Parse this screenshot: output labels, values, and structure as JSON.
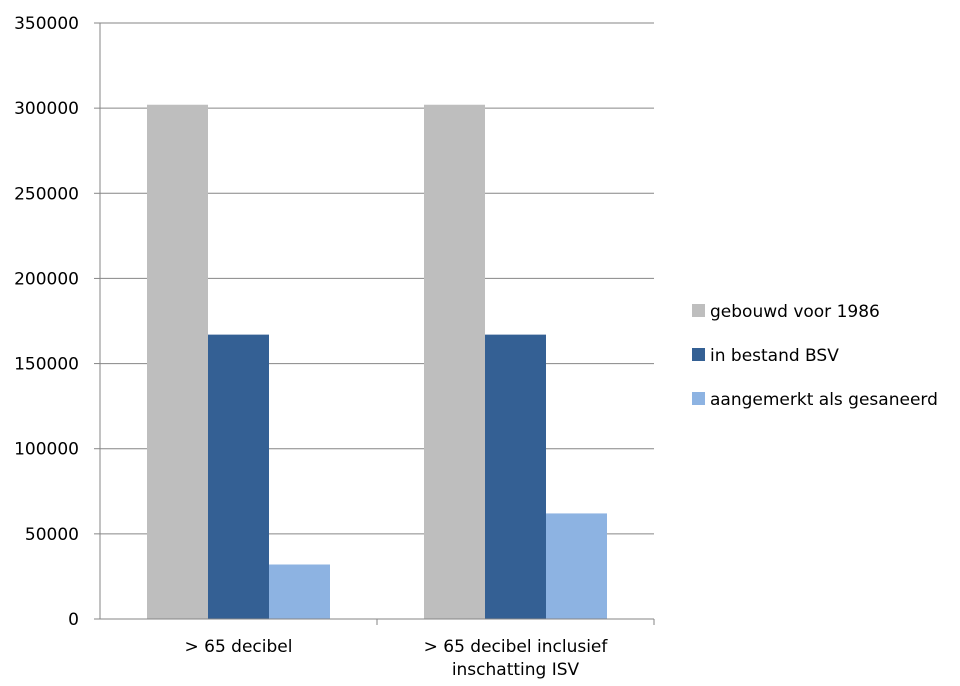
{
  "chart_data": {
    "type": "bar",
    "categories": [
      [
        "> 65 decibel"
      ],
      [
        "> 65 decibel inclusief",
        "inschatting ISV"
      ]
    ],
    "series": [
      {
        "name": "gebouwd voor 1986",
        "color": "#BEBEBE",
        "values": [
          302000,
          302000
        ]
      },
      {
        "name": "in bestand BSV",
        "color": "#346094",
        "values": [
          167000,
          167000
        ]
      },
      {
        "name": "aangemerkt als gesaneerd",
        "color": "#8DB3E2",
        "values": [
          32000,
          62000
        ]
      }
    ],
    "yticks": [
      "0",
      "50000",
      "100000",
      "150000",
      "200000",
      "250000",
      "300000",
      "350000"
    ],
    "ylim": [
      0,
      350000
    ],
    "grid": true,
    "legend_position": "right"
  }
}
